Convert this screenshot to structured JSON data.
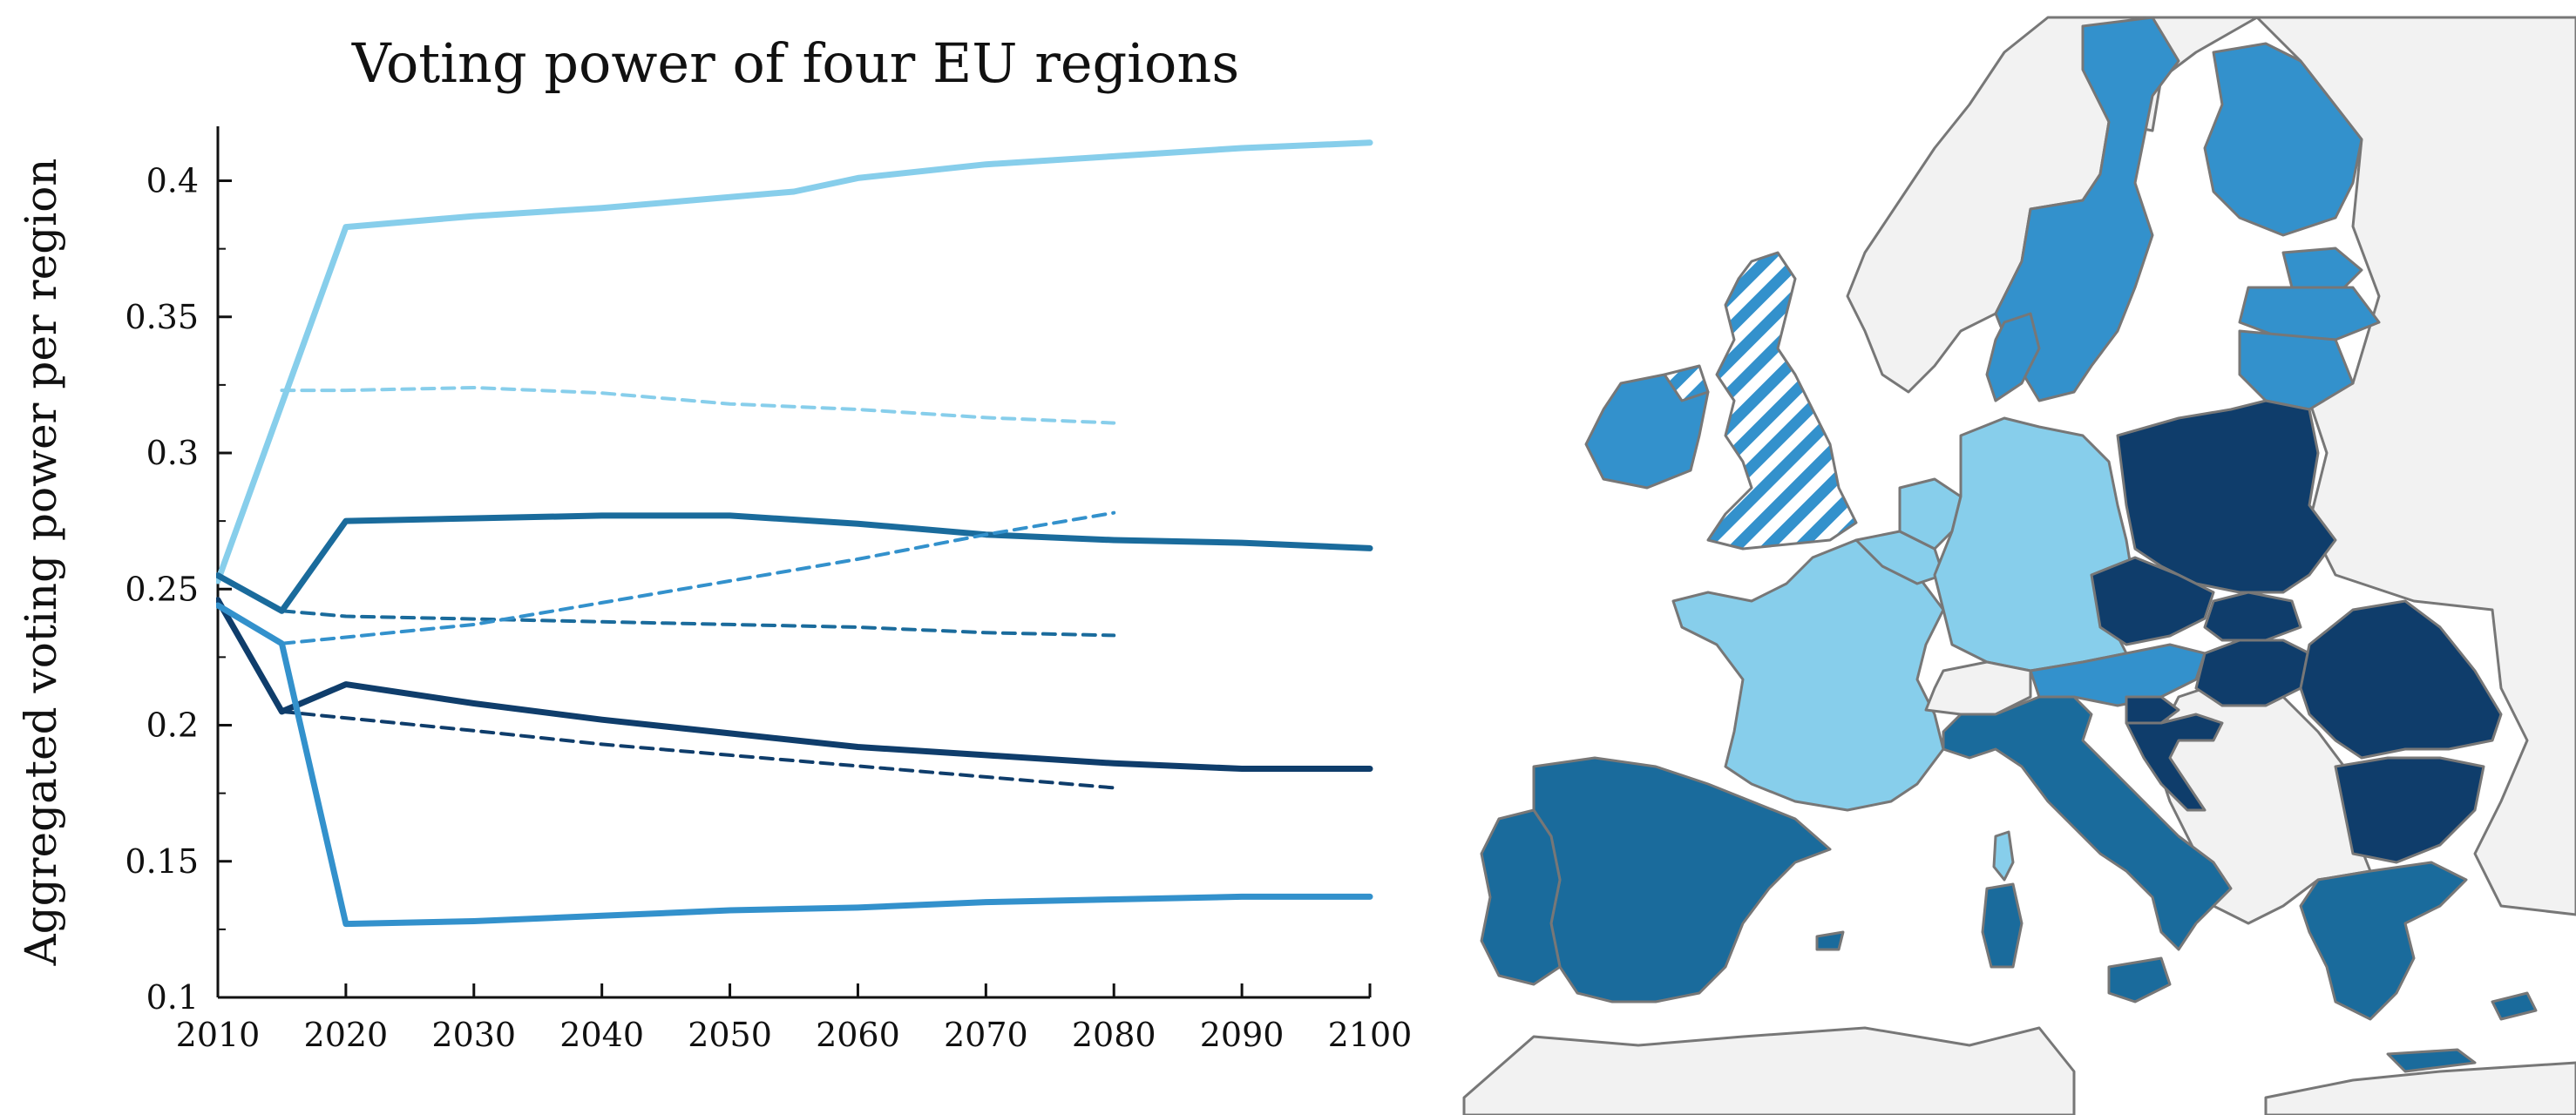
{
  "chart_data": [
    {
      "type": "line",
      "title": "Voting power of four EU regions",
      "xlabel": "",
      "ylabel": "Aggregated voting power per region",
      "xlim": [
        2010,
        2100
      ],
      "ylim": [
        0.1,
        0.42
      ],
      "xticks": [
        "2010",
        "2020",
        "2030",
        "2040",
        "2050",
        "2060",
        "2070",
        "2080",
        "2090",
        "2100"
      ],
      "yticks": [
        "0.1",
        "0.15",
        "0.2",
        "0.25",
        "0.3",
        "0.35",
        "0.4"
      ],
      "grid": false,
      "legend": "none",
      "series": [
        {
          "color": "#87CEEB",
          "dash": "solid",
          "points": [
            [
              2010,
              0.253
            ],
            [
              2020,
              0.383
            ],
            [
              2030,
              0.387
            ],
            [
              2040,
              0.39
            ],
            [
              2045,
              0.392
            ],
            [
              2055,
              0.396
            ],
            [
              2060,
              0.401
            ],
            [
              2070,
              0.406
            ],
            [
              2080,
              0.409
            ],
            [
              2090,
              0.412
            ],
            [
              2100,
              0.414
            ]
          ]
        },
        {
          "color": "#87CEEB",
          "dash": "dashed",
          "points": [
            [
              2015,
              0.323
            ],
            [
              2020,
              0.323
            ],
            [
              2030,
              0.324
            ],
            [
              2040,
              0.322
            ],
            [
              2050,
              0.318
            ],
            [
              2060,
              0.316
            ],
            [
              2070,
              0.313
            ],
            [
              2080,
              0.311
            ]
          ]
        },
        {
          "color": "#1a6b9c",
          "dash": "solid",
          "points": [
            [
              2010,
              0.255
            ],
            [
              2015,
              0.242
            ],
            [
              2020,
              0.275
            ],
            [
              2030,
              0.276
            ],
            [
              2040,
              0.277
            ],
            [
              2050,
              0.277
            ],
            [
              2060,
              0.274
            ],
            [
              2070,
              0.27
            ],
            [
              2080,
              0.268
            ],
            [
              2090,
              0.267
            ],
            [
              2100,
              0.265
            ]
          ]
        },
        {
          "color": "#1a6b9c",
          "dash": "dashed",
          "points": [
            [
              2015,
              0.242
            ],
            [
              2020,
              0.24
            ],
            [
              2030,
              0.239
            ],
            [
              2040,
              0.238
            ],
            [
              2050,
              0.237
            ],
            [
              2060,
              0.236
            ],
            [
              2070,
              0.234
            ],
            [
              2080,
              0.233
            ]
          ]
        },
        {
          "color": "#3391cc",
          "dash": "dashed",
          "points": [
            [
              2015,
              0.23
            ],
            [
              2030,
              0.237
            ],
            [
              2040,
              0.245
            ],
            [
              2050,
              0.253
            ],
            [
              2060,
              0.261
            ],
            [
              2070,
              0.27
            ],
            [
              2080,
              0.278
            ]
          ]
        },
        {
          "color": "#0f3d6b",
          "dash": "solid",
          "points": [
            [
              2010,
              0.246
            ],
            [
              2015,
              0.205
            ],
            [
              2020,
              0.215
            ],
            [
              2030,
              0.208
            ],
            [
              2040,
              0.202
            ],
            [
              2050,
              0.197
            ],
            [
              2060,
              0.192
            ],
            [
              2070,
              0.189
            ],
            [
              2080,
              0.186
            ],
            [
              2090,
              0.184
            ],
            [
              2100,
              0.184
            ]
          ]
        },
        {
          "color": "#0f3d6b",
          "dash": "dashed",
          "points": [
            [
              2015,
              0.205
            ],
            [
              2030,
              0.198
            ],
            [
              2040,
              0.193
            ],
            [
              2050,
              0.189
            ],
            [
              2060,
              0.185
            ],
            [
              2070,
              0.181
            ],
            [
              2080,
              0.177
            ]
          ]
        },
        {
          "color": "#3391cc",
          "dash": "solid",
          "points": [
            [
              2010,
              0.244
            ],
            [
              2015,
              0.23
            ],
            [
              2020,
              0.127
            ],
            [
              2030,
              0.128
            ],
            [
              2040,
              0.13
            ],
            [
              2050,
              0.132
            ],
            [
              2060,
              0.133
            ],
            [
              2070,
              0.135
            ],
            [
              2080,
              0.136
            ],
            [
              2090,
              0.137
            ],
            [
              2100,
              0.137
            ]
          ]
        }
      ]
    },
    {
      "type": "map",
      "region_colors": {
        "light": "#87CEEB",
        "medium": "#3391cc",
        "dark_medium": "#1a6b9c",
        "dark": "#0f3d6b",
        "non_member": "#f2f2f2",
        "border": "#777777"
      },
      "regions": [
        {
          "name": "Norway",
          "group": "non_member"
        },
        {
          "name": "Sweden",
          "group": "medium"
        },
        {
          "name": "Finland",
          "group": "medium"
        },
        {
          "name": "Estonia",
          "group": "medium"
        },
        {
          "name": "Latvia",
          "group": "medium"
        },
        {
          "name": "Lithuania",
          "group": "medium"
        },
        {
          "name": "Denmark",
          "group": "medium"
        },
        {
          "name": "Ireland",
          "group": "medium"
        },
        {
          "name": "United Kingdom",
          "group": "striped"
        },
        {
          "name": "France",
          "group": "light"
        },
        {
          "name": "Germany",
          "group": "light"
        },
        {
          "name": "Belgium",
          "group": "light"
        },
        {
          "name": "Netherlands",
          "group": "light"
        },
        {
          "name": "Luxembourg",
          "group": "light"
        },
        {
          "name": "Corsica",
          "group": "light"
        },
        {
          "name": "Switzerland",
          "group": "non_member"
        },
        {
          "name": "Austria",
          "group": "medium"
        },
        {
          "name": "Italy",
          "group": "dark_medium"
        },
        {
          "name": "Spain",
          "group": "dark_medium"
        },
        {
          "name": "Portugal",
          "group": "dark_medium"
        },
        {
          "name": "Greece",
          "group": "dark_medium"
        },
        {
          "name": "Malta",
          "group": "dark_medium"
        },
        {
          "name": "Cyprus",
          "group": "dark_medium"
        },
        {
          "name": "Poland",
          "group": "dark"
        },
        {
          "name": "Czech Republic",
          "group": "dark"
        },
        {
          "name": "Slovakia",
          "group": "dark"
        },
        {
          "name": "Hungary",
          "group": "dark"
        },
        {
          "name": "Slovenia",
          "group": "dark"
        },
        {
          "name": "Croatia",
          "group": "dark"
        },
        {
          "name": "Romania",
          "group": "dark"
        },
        {
          "name": "Bulgaria",
          "group": "dark"
        },
        {
          "name": "Balkans",
          "group": "non_member"
        },
        {
          "name": "Eastern Europe",
          "group": "non_member"
        },
        {
          "name": "North Africa",
          "group": "non_member"
        }
      ]
    }
  ]
}
